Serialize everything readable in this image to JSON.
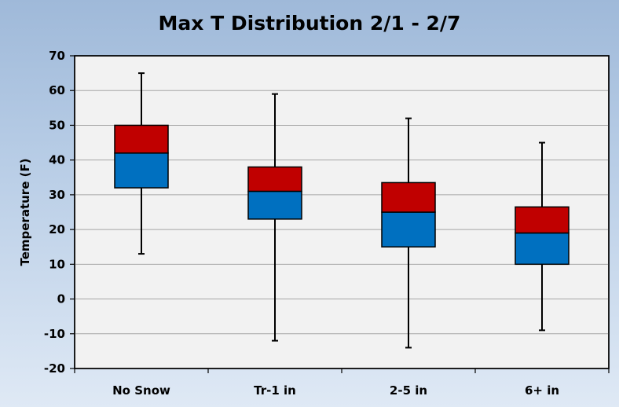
{
  "chart_data": {
    "type": "box",
    "title": "Max T Distribution  2/1 - 2/7",
    "xlabel": "",
    "ylabel": "Temperature (F)",
    "ylim": [
      -20,
      70
    ],
    "yticks": [
      70,
      60,
      50,
      40,
      30,
      20,
      10,
      0,
      -10,
      -20
    ],
    "categories": [
      "No Snow",
      "Tr-1 in",
      "2-5 in",
      "6+ in"
    ],
    "boxes": [
      {
        "min": 13,
        "q1": 32,
        "median": 42,
        "q3": 50,
        "max": 65
      },
      {
        "min": -12,
        "q1": 23,
        "median": 31,
        "q3": 38,
        "max": 59
      },
      {
        "min": -14,
        "q1": 15,
        "median": 25,
        "q3": 33.5,
        "max": 52
      },
      {
        "min": -9,
        "q1": 10,
        "median": 19,
        "q3": 26.5,
        "max": 45
      }
    ],
    "colors": {
      "lower_box": "#0070c0",
      "upper_box": "#c00000",
      "plot_bg": "#f2f2f2",
      "grid": "#a6a6a6"
    },
    "grid": true,
    "legend": "none"
  }
}
